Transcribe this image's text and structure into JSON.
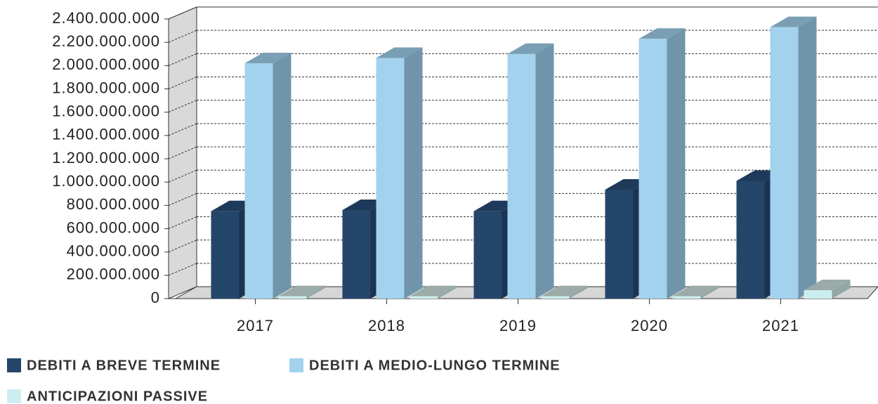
{
  "chart_data": {
    "type": "bar3d",
    "categories": [
      "2017",
      "2018",
      "2019",
      "2020",
      "2021"
    ],
    "series": [
      {
        "name": "DEBITI A BREVE TERMINE",
        "color": "#24466a",
        "values": [
          750000000,
          760000000,
          750000000,
          935000000,
          1010000000
        ]
      },
      {
        "name": "DEBITI A MEDIO-LUNGO TERMINE",
        "color": "#a3d2ee",
        "values": [
          2020000000,
          2065000000,
          2100000000,
          2230000000,
          2330000000
        ]
      },
      {
        "name": "ANTICIPAZIONI PASSIVE",
        "color": "#cdeef0",
        "values": [
          20000000,
          20000000,
          20000000,
          20000000,
          72000000
        ]
      }
    ],
    "ylim": [
      0,
      2400000000
    ],
    "yticks": [
      0,
      {
        "value": 200000000,
        "label": "200.000.000"
      },
      {
        "value": 400000000,
        "label": "400.000.000"
      },
      {
        "value": 600000000,
        "label": "600.000.000"
      },
      {
        "value": 800000000,
        "label": "800.000.000"
      },
      {
        "value": 1000000000,
        "label": "1.000.000.000"
      },
      {
        "value": 1200000000,
        "label": "1.200.000.000"
      },
      {
        "value": 1400000000,
        "label": "1.400.000.000"
      },
      {
        "value": 1600000000,
        "label": "1.600.000.000"
      },
      {
        "value": 1800000000,
        "label": "1.800.000.000"
      },
      {
        "value": 2000000000,
        "label": "2.000.000.000"
      },
      {
        "value": 2200000000,
        "label": "2.200.000.000"
      },
      {
        "value": 2400000000,
        "label": "2.400.000.000"
      }
    ],
    "grid": true
  }
}
